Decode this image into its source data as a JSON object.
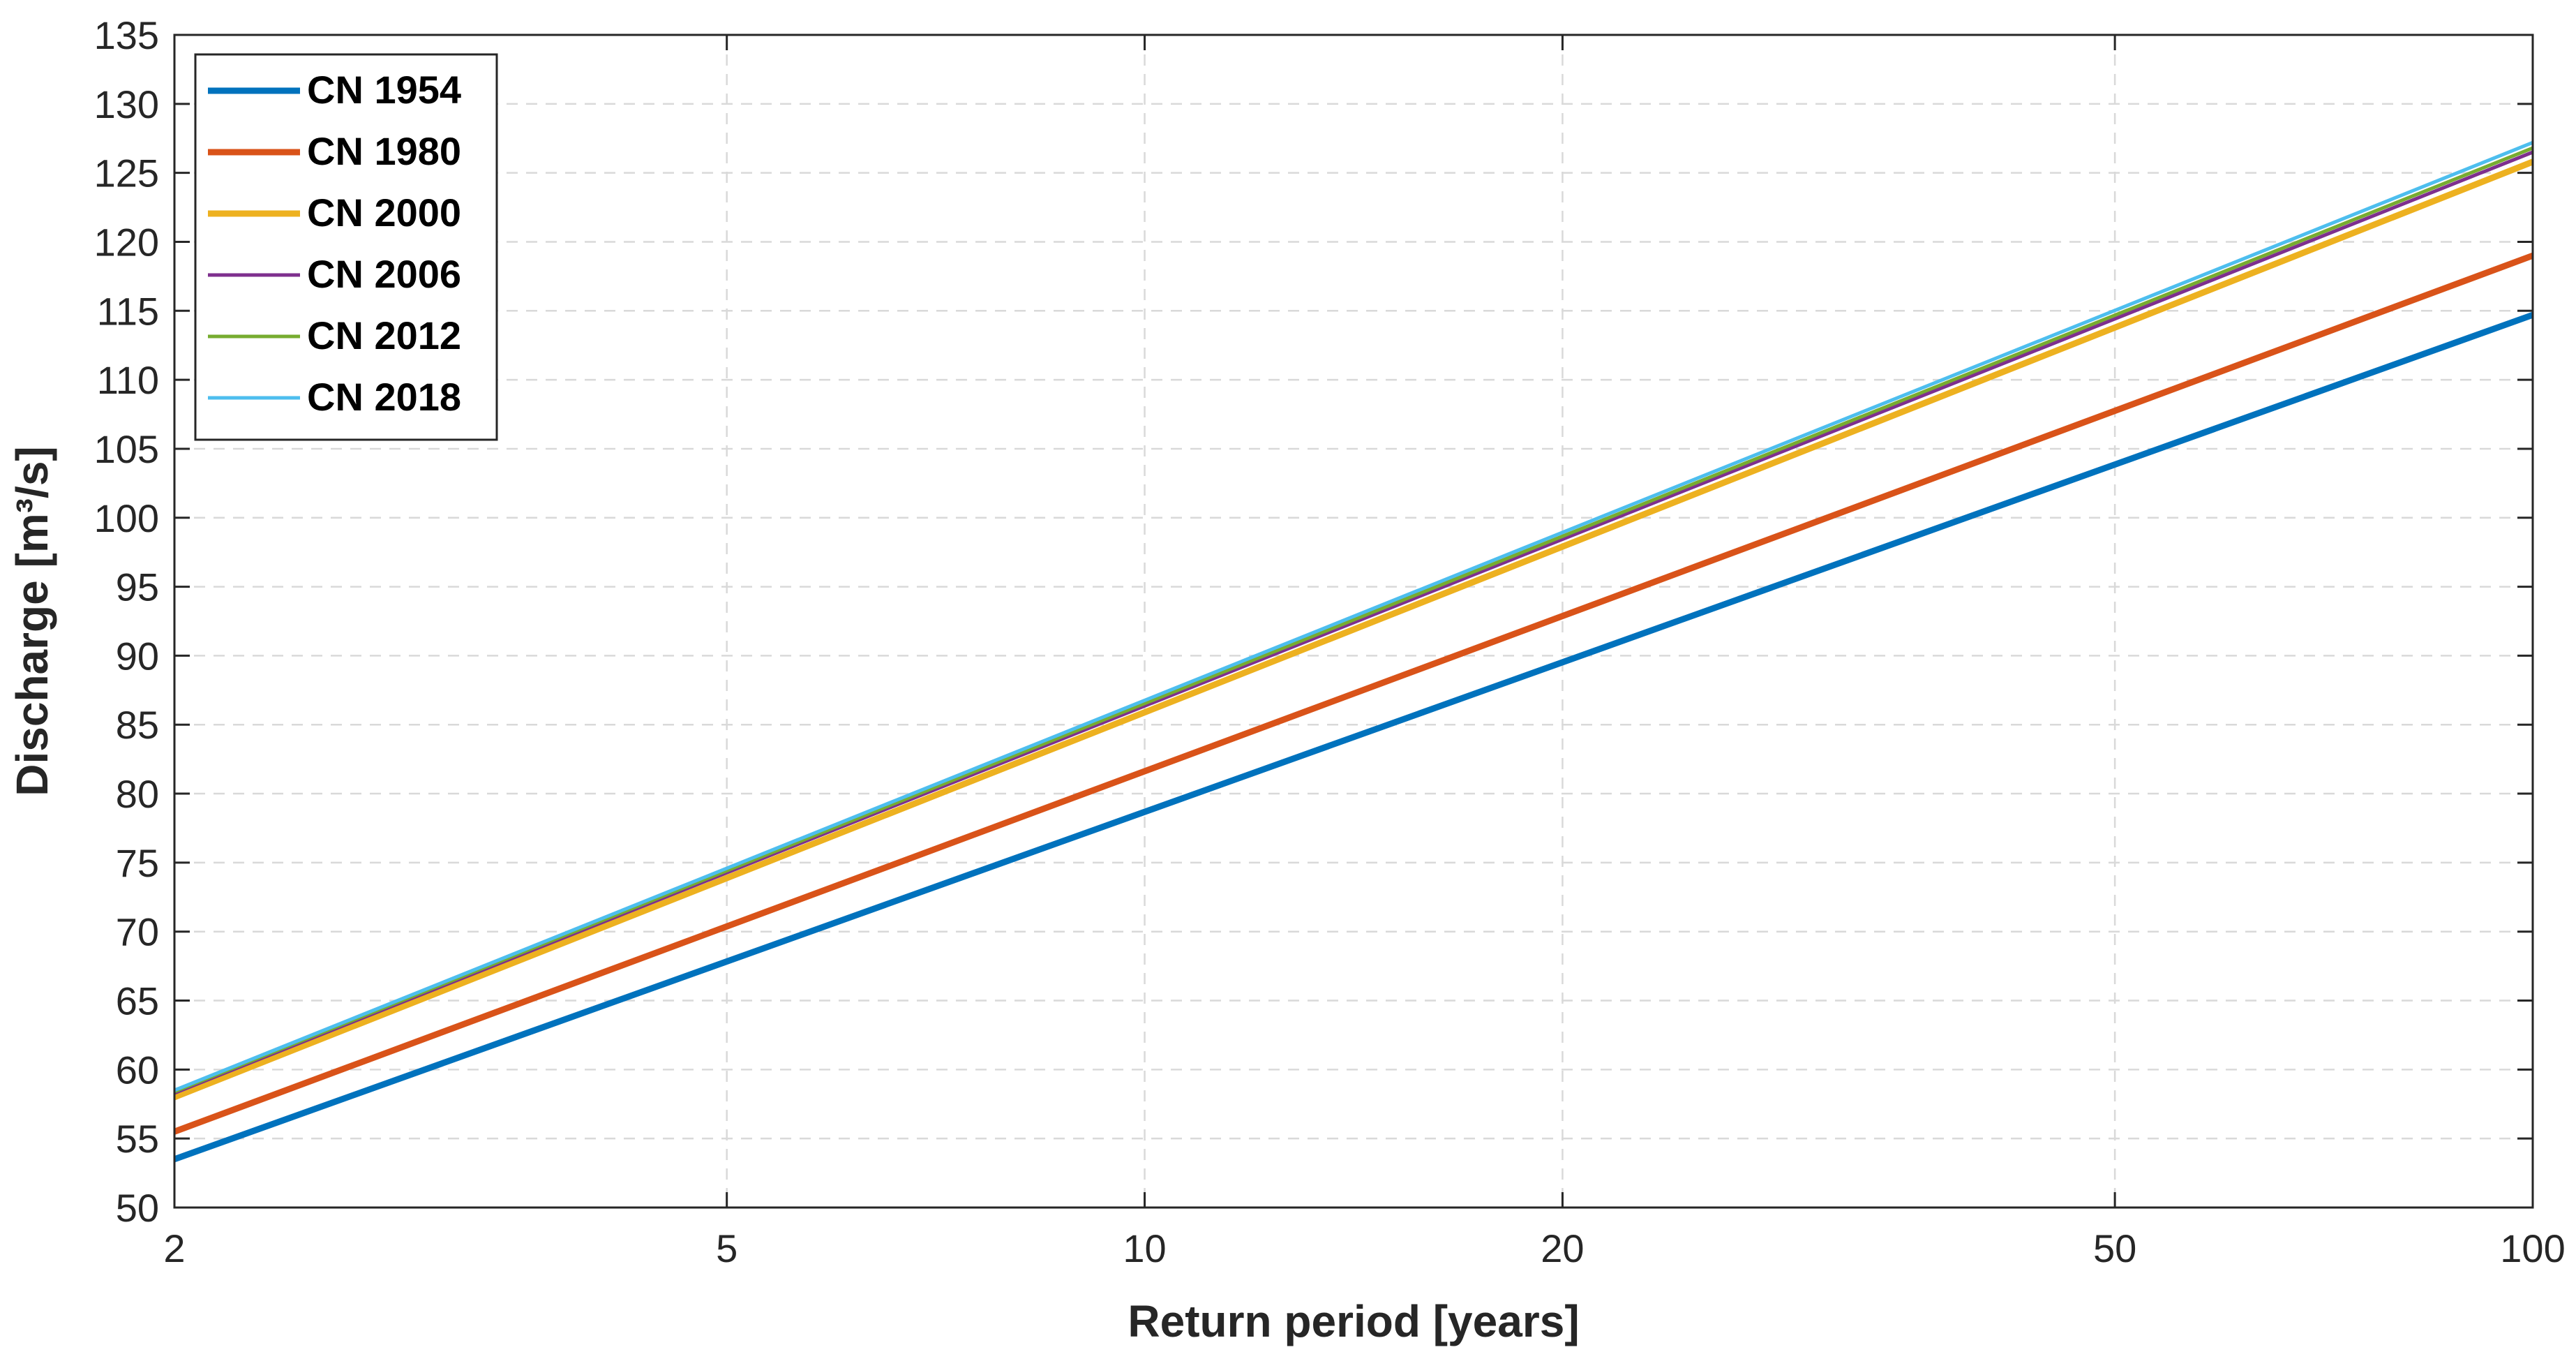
{
  "chart_data": {
    "type": "line",
    "title": "",
    "xlabel": "Return period [years]",
    "ylabel": "Discharge [m³/s]",
    "xscale": "log",
    "xlim": [
      2,
      100
    ],
    "ylim": [
      50,
      135
    ],
    "xticks": [
      2,
      5,
      10,
      20,
      50,
      100
    ],
    "xtick_labels": [
      "2",
      "5",
      "10",
      "20",
      "50",
      "100"
    ],
    "yticks": [
      50,
      55,
      60,
      65,
      70,
      75,
      80,
      85,
      90,
      95,
      100,
      105,
      110,
      115,
      120,
      125,
      130,
      135
    ],
    "ytick_labels": [
      "50",
      "55",
      "60",
      "65",
      "70",
      "75",
      "80",
      "85",
      "90",
      "95",
      "100",
      "105",
      "110",
      "115",
      "120",
      "125",
      "130",
      "135"
    ],
    "grid": true,
    "legend_position": "top-left",
    "x": [
      2,
      100
    ],
    "series": [
      {
        "name": "CN 1954",
        "color": "#0072BD",
        "linewidth": "thick",
        "values": [
          53.5,
          114.7
        ]
      },
      {
        "name": "CN 1980",
        "color": "#D95319",
        "linewidth": "thick",
        "values": [
          55.5,
          119.0
        ]
      },
      {
        "name": "CN 2000",
        "color": "#EDB120",
        "linewidth": "thick",
        "values": [
          58.0,
          125.8
        ]
      },
      {
        "name": "CN 2006",
        "color": "#7E2F8E",
        "linewidth": "thin",
        "values": [
          58.3,
          126.5
        ]
      },
      {
        "name": "CN 2012",
        "color": "#77AC30",
        "linewidth": "thin",
        "values": [
          58.4,
          126.8
        ]
      },
      {
        "name": "CN 2018",
        "color": "#4DBEEE",
        "linewidth": "thin",
        "values": [
          58.5,
          127.2
        ]
      }
    ]
  }
}
